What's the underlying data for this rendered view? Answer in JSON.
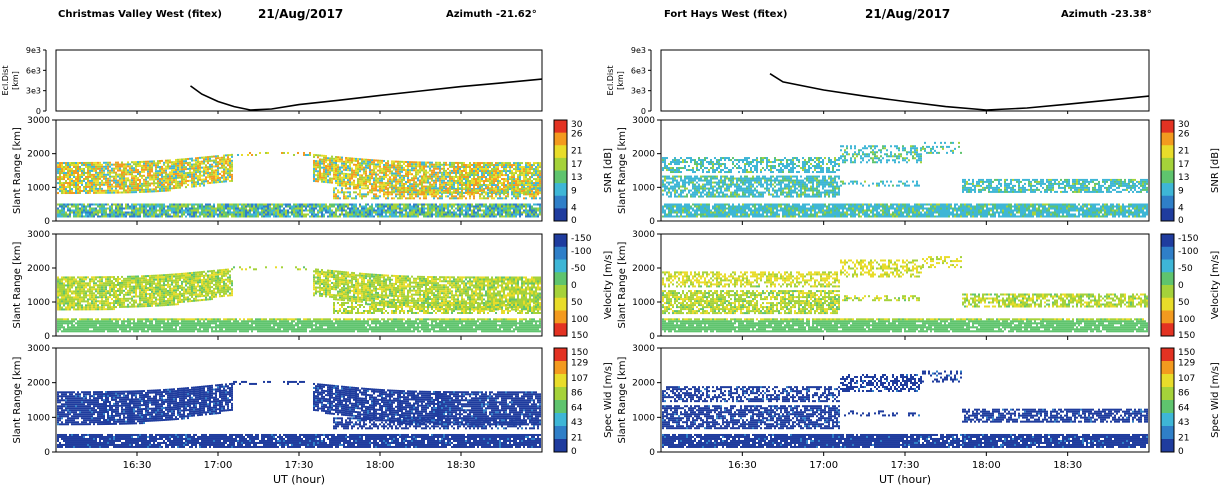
{
  "colors": {
    "snr_scale": [
      "#1f3c9e",
      "#2f7fc8",
      "#3eb6d6",
      "#5fc46e",
      "#a5d23a",
      "#e8dc2a",
      "#f39a1f",
      "#e33222"
    ],
    "velocity_scale": [
      "#1f3c9e",
      "#2f7fc8",
      "#3eb6d6",
      "#5fc46e",
      "#a5d23a",
      "#e8dc2a",
      "#f39a1f",
      "#e33222"
    ],
    "width_scale": [
      "#1f3c9e",
      "#2f7fc8",
      "#3eb6d6",
      "#5fc46e",
      "#a5d23a",
      "#e8dc2a",
      "#f39a1f",
      "#e33222"
    ],
    "ecl_line": "#000000"
  },
  "panels": [
    {
      "radar_title": "Christmas Valley West  (fitex)",
      "date": "21/Aug/2017",
      "azimuth": "Azimuth -21.62°",
      "xlabel": "UT (hour)",
      "x_ticks": [
        "16:30",
        "17:00",
        "17:30",
        "18:00",
        "18:30"
      ]
    },
    {
      "radar_title": "Fort Hays West  (fitex)",
      "date": "21/Aug/2017",
      "azimuth": "Azimuth -23.38°",
      "xlabel": "UT (hour)",
      "x_ticks": [
        "16:30",
        "17:00",
        "17:30",
        "18:00",
        "18:30"
      ]
    }
  ],
  "chart_data": [
    {
      "type": "line",
      "radar": "Christmas Valley West",
      "variable": "Ecl.Dist",
      "ylabel": "Ecl.Dist [km]",
      "y_ticks": [
        "9e3",
        "6e3",
        "3e3",
        "0"
      ],
      "ylim": [
        0,
        9000
      ],
      "x_unit": "UT hour",
      "xlim": [
        16.0,
        19.0
      ],
      "x": [
        16.83,
        16.9,
        17.0,
        17.1,
        17.2,
        17.33,
        17.5,
        17.75,
        18.0,
        18.25,
        18.5,
        18.75,
        19.0
      ],
      "y": [
        3700,
        2500,
        1400,
        650,
        150,
        300,
        950,
        1600,
        2300,
        2950,
        3600,
        4150,
        4700
      ]
    },
    {
      "type": "heatmap",
      "radar": "Christmas Valley West",
      "variable": "SNR",
      "ylabel": "Slant Range [km]",
      "y_ticks": [
        "0",
        "1000",
        "2000",
        "3000"
      ],
      "ylim": [
        0,
        3000
      ],
      "xlim": [
        16.0,
        19.0
      ],
      "colorbar_label": "SNR [dB]",
      "colorbar_ticks": [
        "0",
        "4",
        "9",
        "13",
        "17",
        "21",
        "26",
        "30"
      ],
      "colorbar_range": [
        0,
        30
      ]
    },
    {
      "type": "heatmap",
      "radar": "Christmas Valley West",
      "variable": "Velocity",
      "ylabel": "Slant Range [km]",
      "y_ticks": [
        "0",
        "1000",
        "2000",
        "3000"
      ],
      "ylim": [
        0,
        3000
      ],
      "xlim": [
        16.0,
        19.0
      ],
      "colorbar_label": "Velocity [m/s]",
      "colorbar_ticks": [
        "-150",
        "-100",
        "-50",
        "0",
        "50",
        "100",
        "150"
      ],
      "colorbar_range": [
        -150,
        150
      ]
    },
    {
      "type": "heatmap",
      "radar": "Christmas Valley West",
      "variable": "Spectral Width",
      "ylabel": "Slant Range [km]",
      "y_ticks": [
        "0",
        "1000",
        "2000",
        "3000"
      ],
      "ylim": [
        0,
        3000
      ],
      "xlim": [
        16.0,
        19.0
      ],
      "colorbar_label": "Spec Wid [m/s]",
      "colorbar_ticks": [
        "0",
        "21",
        "43",
        "64",
        "86",
        "107",
        "129",
        "150"
      ],
      "colorbar_range": [
        0,
        150
      ]
    },
    {
      "type": "line",
      "radar": "Fort Hays West",
      "variable": "Ecl.Dist",
      "ylabel": "Ecl.Dist [km]",
      "y_ticks": [
        "9e3",
        "6e3",
        "3e3",
        "0"
      ],
      "ylim": [
        0,
        9000
      ],
      "x_unit": "UT hour",
      "xlim": [
        16.0,
        19.0
      ],
      "x": [
        16.67,
        16.75,
        17.0,
        17.25,
        17.5,
        17.75,
        18.0,
        18.25,
        18.5,
        18.75,
        19.0
      ],
      "y": [
        5500,
        4300,
        3100,
        2200,
        1400,
        650,
        150,
        450,
        1000,
        1600,
        2200
      ]
    },
    {
      "type": "heatmap",
      "radar": "Fort Hays West",
      "variable": "SNR",
      "ylabel": "Slant Range [km]",
      "y_ticks": [
        "0",
        "1000",
        "2000",
        "3000"
      ],
      "ylim": [
        0,
        3000
      ],
      "xlim": [
        16.0,
        19.0
      ],
      "colorbar_label": "SNR [dB]",
      "colorbar_ticks": [
        "0",
        "4",
        "9",
        "13",
        "17",
        "21",
        "26",
        "30"
      ],
      "colorbar_range": [
        0,
        30
      ]
    },
    {
      "type": "heatmap",
      "radar": "Fort Hays West",
      "variable": "Velocity",
      "ylabel": "Slant Range [km]",
      "y_ticks": [
        "0",
        "1000",
        "2000",
        "3000"
      ],
      "ylim": [
        0,
        3000
      ],
      "xlim": [
        16.0,
        19.0
      ],
      "colorbar_label": "Velocity [m/s]",
      "colorbar_ticks": [
        "-150",
        "-100",
        "-50",
        "0",
        "50",
        "100",
        "150"
      ],
      "colorbar_range": [
        -150,
        150
      ]
    },
    {
      "type": "heatmap",
      "radar": "Fort Hays West",
      "variable": "Spectral Width",
      "ylabel": "Slant Range [km]",
      "y_ticks": [
        "0",
        "1000",
        "2000",
        "3000"
      ],
      "ylim": [
        0,
        3000
      ],
      "xlim": [
        16.0,
        19.0
      ],
      "colorbar_label": "Spec Wid [m/s]",
      "colorbar_ticks": [
        "0",
        "21",
        "43",
        "64",
        "86",
        "107",
        "129",
        "150"
      ],
      "colorbar_range": [
        0,
        150
      ]
    }
  ]
}
